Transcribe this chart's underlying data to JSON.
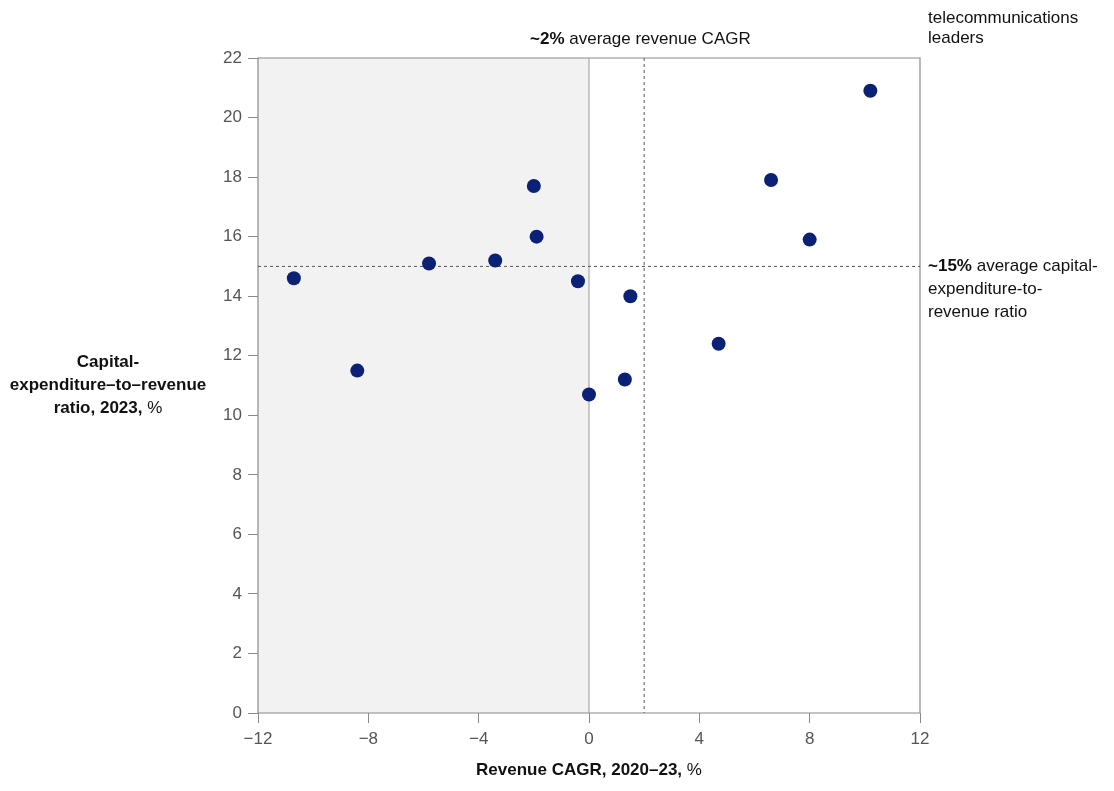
{
  "chart_data": {
    "type": "scatter",
    "xlabel": "Revenue CAGR, 2020–23, %",
    "ylabel": "Capital-expenditure–to–revenue ratio, 2023, %",
    "x": [
      -10.7,
      -8.4,
      -5.8,
      -3.4,
      -2.0,
      -1.9,
      -0.4,
      0.0,
      1.3,
      1.5,
      4.7,
      6.6,
      8.0,
      10.2
    ],
    "series": [
      {
        "color": "#0a2175",
        "values": [
          14.6,
          11.5,
          15.1,
          15.2,
          17.7,
          16.0,
          14.5,
          10.7,
          11.2,
          14.0,
          12.4,
          17.9,
          15.9,
          20.9
        ]
      }
    ],
    "xlim": [
      -12,
      12
    ],
    "xticks": [
      {
        "value": -12,
        "label": "−12"
      },
      {
        "value": -8,
        "label": "−8"
      },
      {
        "value": -4,
        "label": "−4"
      },
      0,
      4,
      8,
      12
    ],
    "ylim": [
      0,
      22
    ],
    "yticks": [
      0,
      2,
      4,
      6,
      8,
      10,
      12,
      14,
      16,
      18,
      20,
      22
    ],
    "bands": [
      {
        "axis": "x",
        "from": -12,
        "to": 0,
        "color": "#f2f2f2"
      }
    ],
    "ref_lines": [
      {
        "axis": "x",
        "value": 0,
        "color": "#9a9a9a",
        "line_style": "solid"
      },
      {
        "axis": "x",
        "value": 2,
        "label": "~2% average revenue CAGR",
        "color": "#555555",
        "line_style": "dashed"
      },
      {
        "axis": "y",
        "value": 15,
        "label": "~15% average capital-expenditure-to-revenue ratio",
        "color": "#555555",
        "line_style": "dashed"
      }
    ],
    "annotations": [
      "telecommunications leaders"
    ],
    "marker": "circle",
    "grid": false,
    "legend": false
  }
}
